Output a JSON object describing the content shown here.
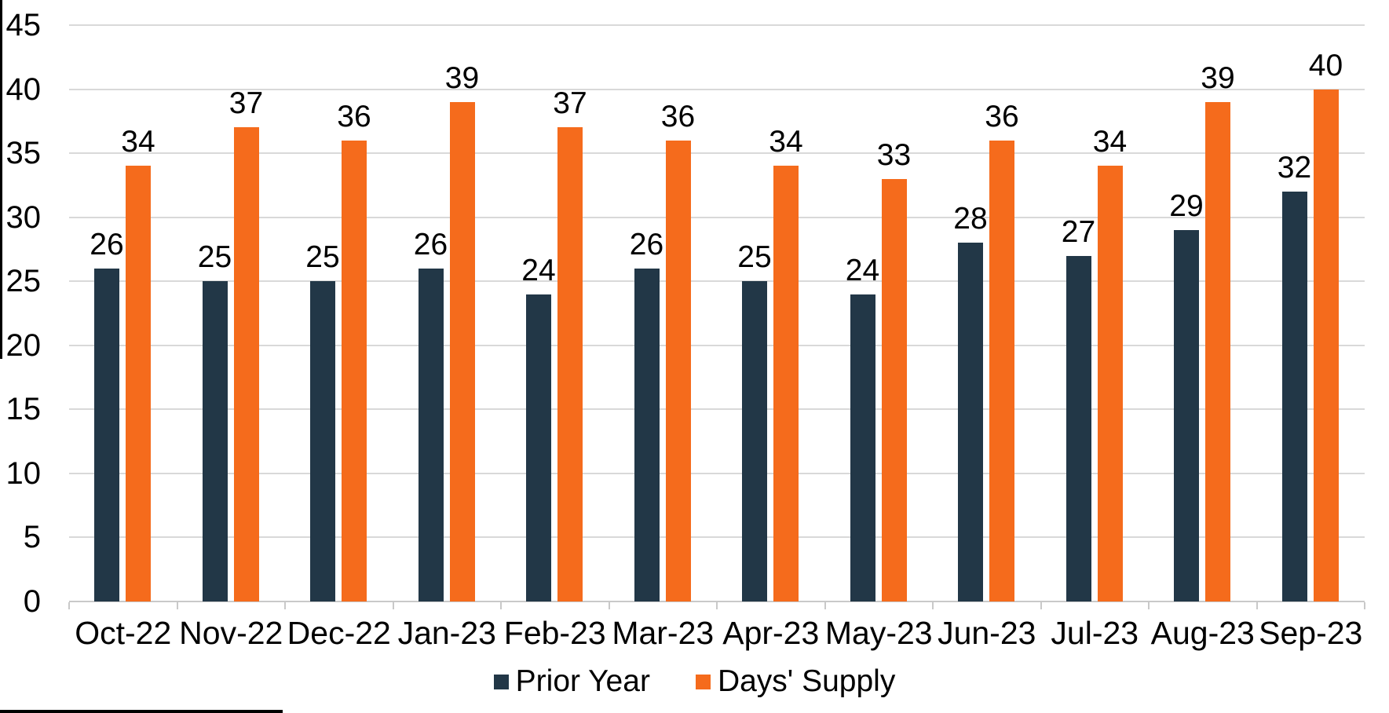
{
  "chart_data": {
    "type": "bar",
    "title": "",
    "xlabel": "",
    "ylabel": "",
    "categories": [
      "Oct-22",
      "Nov-22",
      "Dec-22",
      "Jan-23",
      "Feb-23",
      "Mar-23",
      "Apr-23",
      "May-23",
      "Jun-23",
      "Jul-23",
      "Aug-23",
      "Sep-23"
    ],
    "series": [
      {
        "name": "Prior Year",
        "slug": "prior-year",
        "color": "#223747",
        "values": [
          26,
          25,
          25,
          26,
          24,
          26,
          25,
          24,
          28,
          27,
          29,
          32
        ]
      },
      {
        "name": "Days' Supply",
        "slug": "days-supply",
        "color": "#F56B1C",
        "values": [
          34,
          37,
          36,
          39,
          37,
          36,
          34,
          33,
          36,
          34,
          39,
          40
        ]
      }
    ],
    "ylim": [
      0,
      45
    ],
    "ytick_step": 5,
    "yticks": [
      0,
      5,
      10,
      15,
      20,
      25,
      30,
      35,
      40,
      45
    ],
    "grid": true,
    "gridline_color": "#d9d9d9",
    "axis_line_color": "#c9c9c9",
    "text_color": "#000000",
    "data_labels": true,
    "legend_position": "bottom"
  },
  "legend": {
    "items": [
      {
        "label": "Prior Year"
      },
      {
        "label": "Days' Supply"
      }
    ]
  }
}
